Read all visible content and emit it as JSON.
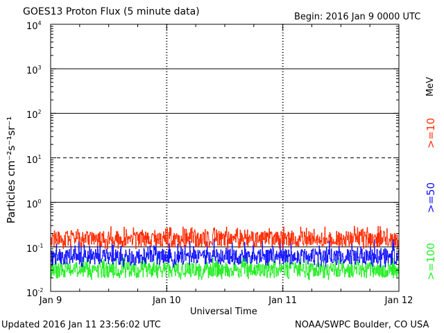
{
  "header": {
    "title": "GOES13 Proton Flux (5 minute data)",
    "begin": "Begin: 2016 Jan 9 0000 UTC"
  },
  "footer": {
    "updated": "Updated 2016 Jan 11 23:56:02 UTC",
    "source": "NOAA/SWPC Boulder, CO USA"
  },
  "colors": {
    "ge10": "#ff2a00",
    "ge50": "#1010ff",
    "ge100": "#22ee22"
  },
  "chart_data": {
    "type": "line",
    "title": "GOES13 Proton Flux (5 minute data)",
    "xlabel": "Universal Time",
    "ylabel": "Particles cm⁻²s⁻¹sr⁻¹",
    "y_scale": "log",
    "ylim": [
      0.01,
      10000
    ],
    "y_tick_labels": [
      {
        "value": 0.01,
        "base": "10",
        "exp": "-2"
      },
      {
        "value": 0.1,
        "base": "10",
        "exp": "-1"
      },
      {
        "value": 1,
        "base": "10",
        "exp": "0"
      },
      {
        "value": 10,
        "base": "10",
        "exp": "1"
      },
      {
        "value": 100,
        "base": "10",
        "exp": "2"
      },
      {
        "value": 1000,
        "base": "10",
        "exp": "3"
      },
      {
        "value": 10000,
        "base": "10",
        "exp": "4"
      }
    ],
    "x_tick_labels": [
      "Jan 9",
      "Jan 10",
      "Jan 11",
      "Jan 12"
    ],
    "xlim": [
      "2016-01-09 00:00",
      "2016-01-12 00:00"
    ],
    "unit_label": "MeV",
    "legend_position": "right",
    "series": [
      {
        "name": ">=10",
        "color": "#ff2a00",
        "typical": 0.15,
        "min": 0.09,
        "max": 0.29
      },
      {
        "name": ">=50",
        "color": "#1010ff",
        "typical": 0.06,
        "min": 0.035,
        "max": 0.15
      },
      {
        "name": ">=100",
        "color": "#22ee22",
        "typical": 0.03,
        "min": 0.018,
        "max": 0.06
      }
    ]
  }
}
